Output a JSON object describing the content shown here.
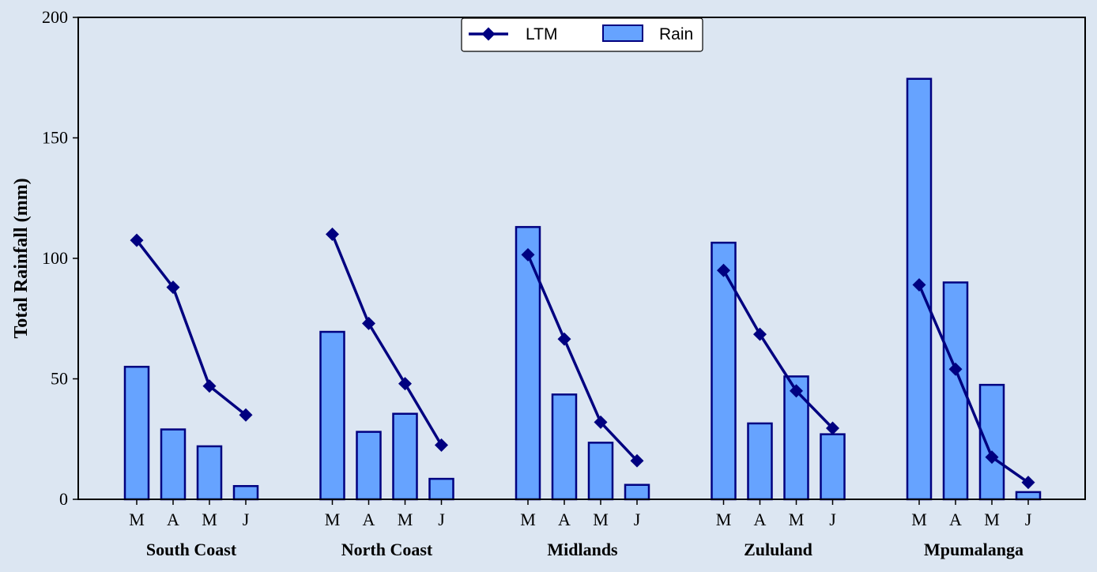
{
  "chart_data": {
    "type": "bar",
    "ylabel": "Total Rainfall (mm)",
    "ylim": [
      0,
      200
    ],
    "yticks": [
      "0",
      "50",
      "100",
      "150",
      "200"
    ],
    "grid": false,
    "legend_position": "top-center",
    "month_labels": [
      "M",
      "A",
      "M",
      "J"
    ],
    "groups": [
      "South Coast",
      "North Coast",
      "Midlands",
      "Zululand",
      "Mpumalanga"
    ],
    "series": [
      {
        "name": "Rain",
        "type": "bar",
        "color": "#66a3ff",
        "values": [
          [
            55,
            29,
            22,
            5.5
          ],
          [
            69.5,
            28,
            35.5,
            8.5
          ],
          [
            113,
            43.5,
            23.5,
            6
          ],
          [
            106.5,
            31.5,
            51,
            27
          ],
          [
            174.5,
            90,
            47.5,
            3
          ]
        ]
      },
      {
        "name": "LTM",
        "type": "line",
        "color": "#000080",
        "values": [
          [
            107.5,
            88,
            47,
            35
          ],
          [
            110,
            73,
            48,
            22.5
          ],
          [
            101.5,
            66.5,
            32,
            16
          ],
          [
            95,
            68.5,
            45,
            29.5
          ],
          [
            89,
            54,
            17.5,
            7
          ]
        ]
      }
    ]
  },
  "colors": {
    "background": "#dce6f2",
    "bar_fill": "#66a3ff",
    "bar_edge": "#000080",
    "line": "#000080",
    "axis": "#000000"
  }
}
